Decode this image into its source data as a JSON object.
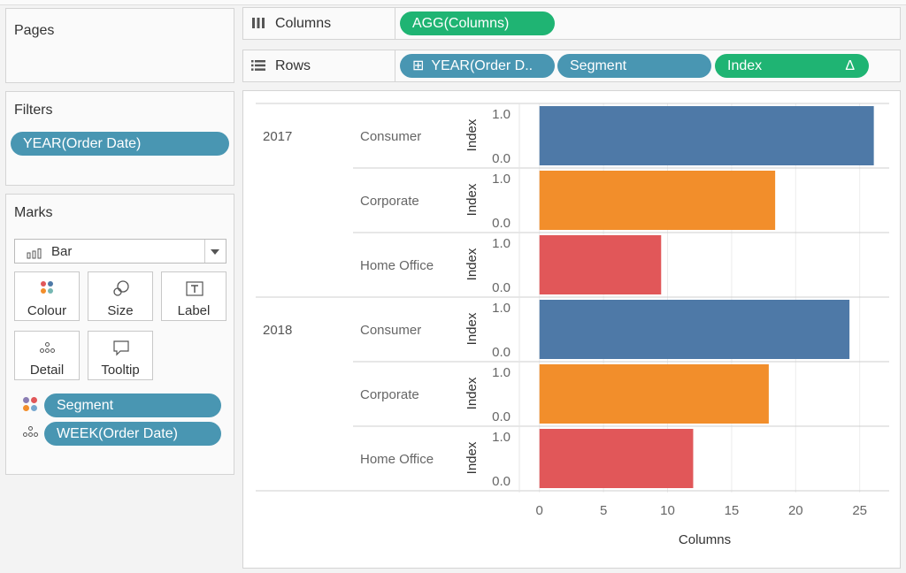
{
  "pages": {
    "title": "Pages"
  },
  "filters": {
    "title": "Filters",
    "pills": [
      "YEAR(Order Date)"
    ]
  },
  "marks": {
    "title": "Marks",
    "mark_type": "Bar",
    "buttons": {
      "colour": "Colour",
      "size": "Size",
      "label": "Label",
      "detail": "Detail",
      "tooltip": "Tooltip"
    },
    "fields": [
      {
        "icon": "colour-dots-icon",
        "label": "Segment"
      },
      {
        "icon": "detail-dots-icon",
        "label": "WEEK(Order Date)"
      }
    ]
  },
  "shelves": {
    "columns": {
      "label": "Columns",
      "icon": "columns-icon",
      "pills": [
        "AGG(Columns)"
      ]
    },
    "rows": {
      "label": "Rows",
      "icon": "rows-icon",
      "pills": [
        "YEAR(Order D..",
        "Segment",
        "Index"
      ],
      "delta": "Δ",
      "expand": "⊞"
    }
  },
  "colors": {
    "Consumer": "#4e79a7",
    "Corporate": "#f28e2b",
    "Home Office": "#e15759",
    "pill_blue": "#4996b2",
    "pill_green": "#1fb473"
  },
  "chart_data": {
    "type": "bar",
    "orientation": "horizontal",
    "xlabel": "Columns",
    "row_axis_label": "Index",
    "row_axis_ticks": [
      "1.0",
      "0.0"
    ],
    "xlim": [
      -1.5,
      27.3
    ],
    "xticks": [
      0,
      5,
      10,
      15,
      20,
      25
    ],
    "grid": true,
    "groups": [
      {
        "year": "2017",
        "rows": [
          {
            "segment": "Consumer",
            "value": 26.1
          },
          {
            "segment": "Corporate",
            "value": 18.4
          },
          {
            "segment": "Home Office",
            "value": 9.5
          }
        ]
      },
      {
        "year": "2018",
        "rows": [
          {
            "segment": "Consumer",
            "value": 24.2
          },
          {
            "segment": "Corporate",
            "value": 17.9
          },
          {
            "segment": "Home Office",
            "value": 12.0
          }
        ]
      }
    ]
  }
}
